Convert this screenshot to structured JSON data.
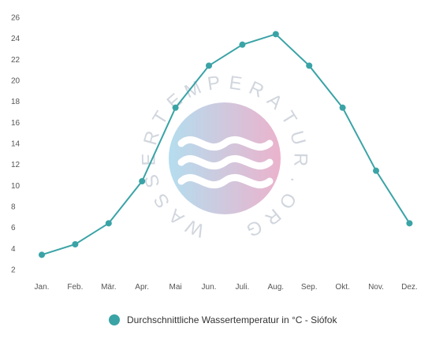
{
  "chart_data": {
    "type": "line",
    "categories": [
      "Jan.",
      "Feb.",
      "Mär.",
      "Apr.",
      "Mai",
      "Jun.",
      "Juli.",
      "Aug.",
      "Sep.",
      "Okt.",
      "Nov.",
      "Dez."
    ],
    "series": [
      {
        "name": "Durchschnittliche Wassertemperatur in °C - Siófok",
        "values": [
          3.4,
          4.4,
          6.4,
          10.4,
          17.4,
          21.4,
          23.4,
          24.4,
          21.4,
          17.4,
          11.4,
          6.4
        ],
        "color": "#3aa3a6"
      }
    ],
    "y_ticks": [
      2,
      4,
      6,
      8,
      10,
      12,
      14,
      16,
      18,
      20,
      22,
      24,
      26
    ],
    "ylim": [
      2,
      26
    ],
    "grid": false,
    "legend_position": "bottom"
  },
  "watermark": {
    "text": "WASSERTEMPERATUR.ORG",
    "colors": [
      "#a8d8ec",
      "#e8a6c4"
    ]
  }
}
